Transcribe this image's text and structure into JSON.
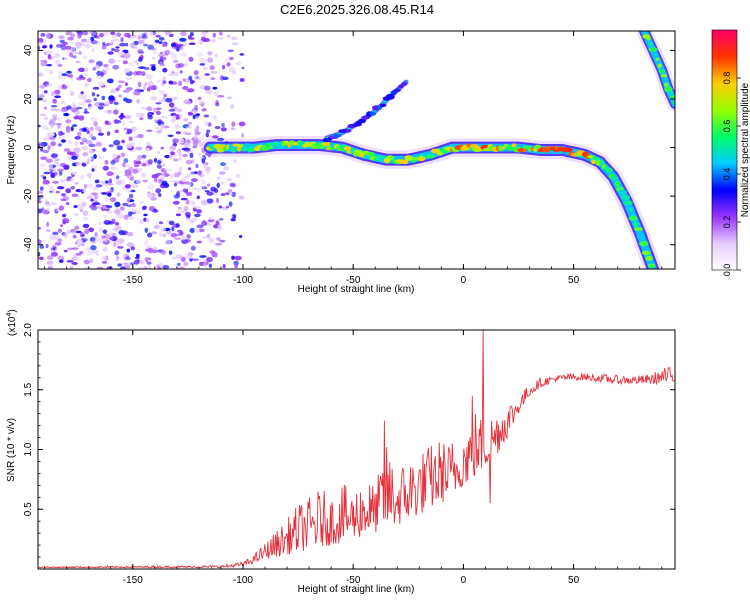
{
  "title": "C2E6.2025.326.08.45.R14",
  "chart_data": [
    {
      "type": "heatmap",
      "name": "spectrogram",
      "xlabel": "Height of straight line (km)",
      "ylabel": "Frequency (Hz)",
      "xlim": [
        -193,
        96
      ],
      "ylim": [
        -50,
        48
      ],
      "xticks": [
        -150,
        -100,
        -50,
        0,
        50
      ],
      "yticks": [
        -40,
        -20,
        0,
        20,
        40
      ],
      "noise_region": [
        -193,
        -105
      ],
      "ridge": {
        "x": [
          -115,
          -105,
          -95,
          -85,
          -75,
          -65,
          -55,
          -45,
          -35,
          -25,
          -15,
          -5,
          5,
          15,
          25,
          35,
          45,
          55,
          62,
          68,
          74,
          80,
          86
        ],
        "y": [
          0,
          0,
          0,
          1,
          1,
          1,
          0,
          -3,
          -5,
          -5,
          -3,
          0,
          0,
          0,
          0,
          -1,
          -1,
          -3,
          -6,
          -12,
          -22,
          -35,
          -50
        ]
      },
      "side_trace": {
        "x": [
          -62,
          -55,
          -48,
          -40,
          -32,
          -26
        ],
        "y": [
          4,
          6,
          10,
          15,
          22,
          27
        ]
      },
      "edge_trace": {
        "x": [
          82,
          86,
          90,
          93,
          96
        ],
        "y": [
          48,
          40,
          32,
          24,
          18
        ]
      },
      "colorbar": {
        "label": "Normalized spectral amplitude",
        "ticks": [
          "0.0",
          "0.2",
          "0.4",
          "0.6",
          "0.8"
        ],
        "tick_values": [
          0,
          0.2,
          0.4,
          0.6,
          0.8
        ],
        "range": [
          0,
          1
        ],
        "colors": [
          "#ffffff",
          "#e6ccff",
          "#9933ff",
          "#0000ff",
          "#00ccff",
          "#00ff66",
          "#99ff00",
          "#ffcc00",
          "#ff3300",
          "#ff0066"
        ]
      }
    },
    {
      "type": "line",
      "name": "snr",
      "xlabel": "Height of straight line (km)",
      "ylabel": "SNR (10 * v/v)",
      "multiplier": "(x10",
      "multiplier_exp": "4",
      "multiplier_close": ")",
      "xlim": [
        -193,
        96
      ],
      "ylim": [
        0,
        2.0
      ],
      "xticks": [
        -150,
        -100,
        -50,
        0,
        50
      ],
      "yticks": [
        0.5,
        1.0,
        1.5,
        2.0
      ],
      "ytick_labels": [
        "0.5",
        "1.0",
        "1.5",
        "2.0"
      ],
      "color": "#e8303a",
      "envelope": {
        "x": [
          -193,
          -110,
          -100,
          -95,
          -90,
          -85,
          -80,
          -75,
          -70,
          -65,
          -60,
          -55,
          -50,
          -45,
          -40,
          -35,
          -30,
          -25,
          -20,
          -15,
          -10,
          -5,
          0,
          5,
          10,
          15,
          20,
          25,
          30,
          35,
          40,
          45,
          50,
          55,
          60,
          65,
          70,
          75,
          80,
          85,
          90,
          96
        ],
        "low": [
          0.01,
          0.01,
          0.02,
          0.05,
          0.08,
          0.1,
          0.12,
          0.14,
          0.16,
          0.18,
          0.2,
          0.22,
          0.25,
          0.27,
          0.3,
          0.33,
          0.36,
          0.4,
          0.45,
          0.5,
          0.55,
          0.6,
          0.7,
          0.75,
          0.85,
          0.95,
          1.1,
          1.3,
          1.45,
          1.52,
          1.56,
          1.58,
          1.58,
          1.58,
          1.57,
          1.56,
          1.55,
          1.55,
          1.55,
          1.55,
          1.55,
          1.56
        ],
        "high": [
          0.02,
          0.03,
          0.06,
          0.12,
          0.22,
          0.32,
          0.42,
          0.55,
          0.6,
          0.68,
          0.62,
          0.72,
          0.65,
          0.8,
          0.7,
          1.05,
          0.85,
          0.95,
          0.98,
          1.05,
          1.1,
          1.05,
          1.15,
          1.35,
          1.25,
          1.35,
          1.4,
          1.45,
          1.55,
          1.6,
          1.62,
          1.63,
          1.64,
          1.64,
          1.63,
          1.63,
          1.62,
          1.62,
          1.62,
          1.63,
          1.68,
          1.7
        ]
      },
      "spikes": [
        {
          "x": -36,
          "y": 1.24
        },
        {
          "x": -5,
          "y": 1.05
        },
        {
          "x": 9,
          "y": 2.0
        },
        {
          "x": 4,
          "y": 1.45
        },
        {
          "x": 12,
          "y": 0.55
        }
      ]
    }
  ]
}
